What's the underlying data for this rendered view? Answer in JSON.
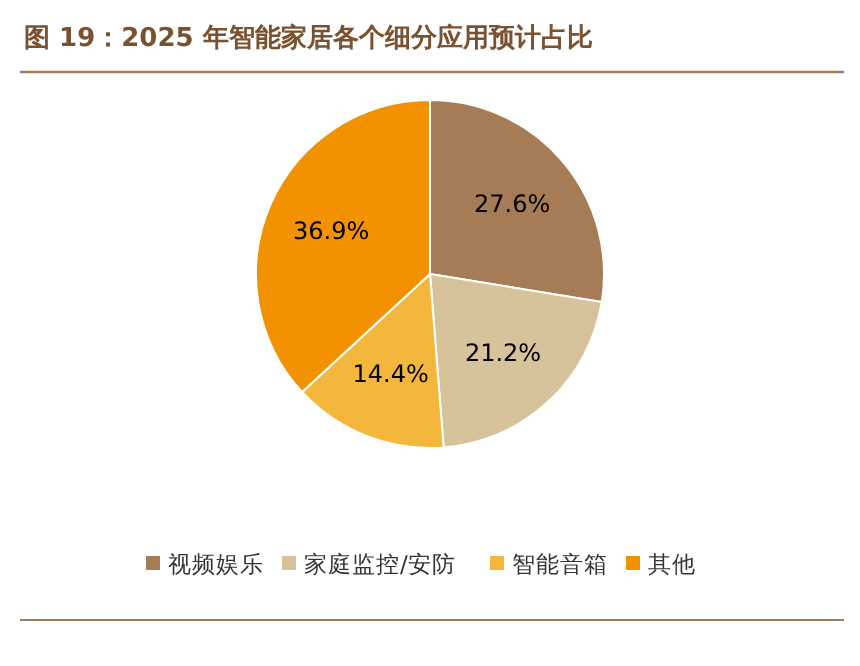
{
  "chart_data": {
    "type": "pie",
    "title": "图 19：2025 年智能家居各个细分应用预计占比",
    "categories": [
      "视频娱乐",
      "家庭监控/安防",
      "智能音箱",
      "其他"
    ],
    "values": [
      27.6,
      21.2,
      14.4,
      36.9
    ],
    "value_labels": [
      "27.6%",
      "21.2%",
      "14.4%",
      "36.9%"
    ],
    "colors": [
      "#a57c55",
      "#d6c39b",
      "#f3b73b",
      "#f39200"
    ],
    "legend": "bottom"
  }
}
